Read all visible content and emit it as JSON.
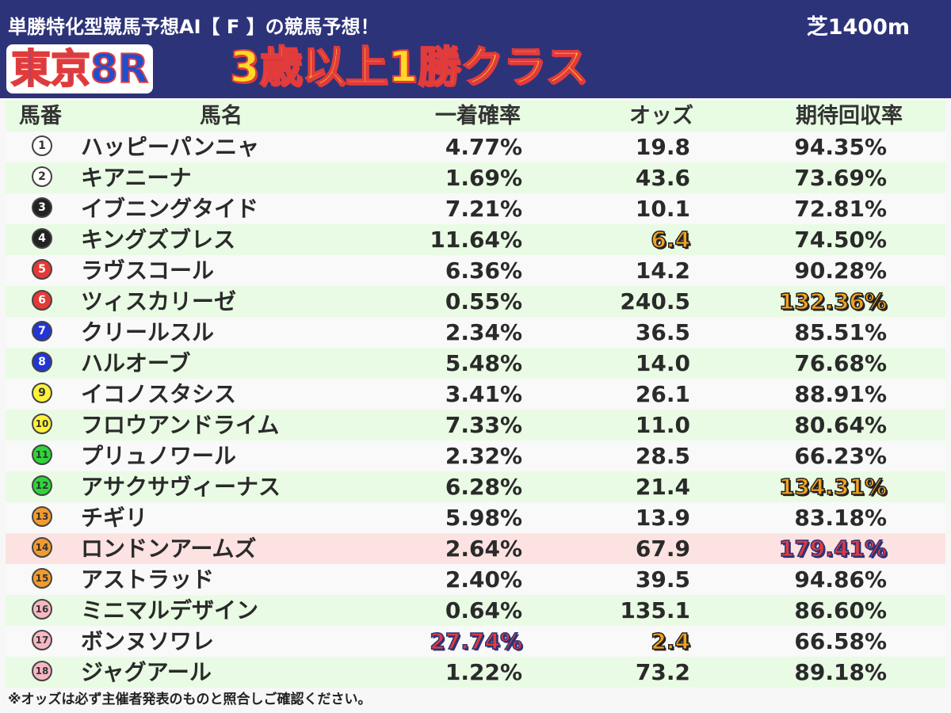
{
  "header": {
    "title": "単勝特化型競馬予想AI【 F 】の競馬予想！",
    "course": "芝1400m",
    "race": "東京8R",
    "race_class": "3歳以上1勝クラス",
    "colors": {
      "bar": "#2d3379",
      "race": "#1e4fd0",
      "class": "#ffd928",
      "outline": "#e23b3b"
    }
  },
  "table": {
    "headers": {
      "num": "馬番",
      "name": "馬名",
      "prob": "一着確率",
      "odds": "オッズ",
      "ret": "期待回収率"
    },
    "rows": [
      {
        "num": "1",
        "name": "ハッピーパンニャ",
        "prob": "4.77%",
        "odds": "19.8",
        "ret": "94.35%",
        "badge": "#ffffff",
        "badge_text": "#333333"
      },
      {
        "num": "2",
        "name": "キアニーナ",
        "prob": "1.69%",
        "odds": "43.6",
        "ret": "73.69%",
        "badge": "#ffffff",
        "badge_text": "#333333"
      },
      {
        "num": "3",
        "name": "イブニングタイド",
        "prob": "7.21%",
        "odds": "10.1",
        "ret": "72.81%",
        "badge": "#222222",
        "badge_text": "#ffffff"
      },
      {
        "num": "4",
        "name": "キングズブレス",
        "prob": "11.64%",
        "odds": "6.4",
        "ret": "74.50%",
        "badge": "#222222",
        "badge_text": "#ffffff",
        "odds_hl": "orange"
      },
      {
        "num": "5",
        "name": "ラヴスコール",
        "prob": "6.36%",
        "odds": "14.2",
        "ret": "90.28%",
        "badge": "#e53935",
        "badge_text": "#ffffff"
      },
      {
        "num": "6",
        "name": "ツィスカリーゼ",
        "prob": "0.55%",
        "odds": "240.5",
        "ret": "132.36%",
        "badge": "#e53935",
        "badge_text": "#ffffff",
        "ret_hl": "orange"
      },
      {
        "num": "7",
        "name": "クリールスル",
        "prob": "2.34%",
        "odds": "36.5",
        "ret": "85.51%",
        "badge": "#2236d6",
        "badge_text": "#ffffff"
      },
      {
        "num": "8",
        "name": "ハルオーブ",
        "prob": "5.48%",
        "odds": "14.0",
        "ret": "76.68%",
        "badge": "#2236d6",
        "badge_text": "#ffffff"
      },
      {
        "num": "9",
        "name": "イコノスタシス",
        "prob": "3.41%",
        "odds": "26.1",
        "ret": "88.91%",
        "badge": "#fff23a",
        "badge_text": "#333333"
      },
      {
        "num": "10",
        "name": "フロウアンドライム",
        "prob": "7.33%",
        "odds": "11.0",
        "ret": "80.64%",
        "badge": "#fff23a",
        "badge_text": "#333333"
      },
      {
        "num": "11",
        "name": "プリュノワール",
        "prob": "2.32%",
        "odds": "28.5",
        "ret": "66.23%",
        "badge": "#2fd43a",
        "badge_text": "#333333"
      },
      {
        "num": "12",
        "name": "アサクサヴィーナス",
        "prob": "6.28%",
        "odds": "21.4",
        "ret": "134.31%",
        "badge": "#2fd43a",
        "badge_text": "#333333",
        "ret_hl": "orange"
      },
      {
        "num": "13",
        "name": "チギリ",
        "prob": "5.98%",
        "odds": "13.9",
        "ret": "83.18%",
        "badge": "#f39a2e",
        "badge_text": "#333333"
      },
      {
        "num": "14",
        "name": "ロンドンアームズ",
        "prob": "2.64%",
        "odds": "67.9",
        "ret": "179.41%",
        "badge": "#f39a2e",
        "badge_text": "#333333",
        "ret_hl": "blue",
        "row_hl": "pink"
      },
      {
        "num": "15",
        "name": "アストラッド",
        "prob": "2.40%",
        "odds": "39.5",
        "ret": "94.86%",
        "badge": "#f39a2e",
        "badge_text": "#333333"
      },
      {
        "num": "16",
        "name": "ミニマルデザイン",
        "prob": "0.64%",
        "odds": "135.1",
        "ret": "86.60%",
        "badge": "#f7b7c3",
        "badge_text": "#333333"
      },
      {
        "num": "17",
        "name": "ボンヌソワレ",
        "prob": "27.74%",
        "odds": "2.4",
        "ret": "66.58%",
        "badge": "#f7b7c3",
        "badge_text": "#333333",
        "prob_hl": "blue",
        "odds_hl": "orange"
      },
      {
        "num": "18",
        "name": "ジャグアール",
        "prob": "1.22%",
        "odds": "73.2",
        "ret": "89.18%",
        "badge": "#f7b7c3",
        "badge_text": "#333333"
      }
    ]
  },
  "footnote": "※オッズは必ず主催者発表のものと照合しご確認ください。"
}
